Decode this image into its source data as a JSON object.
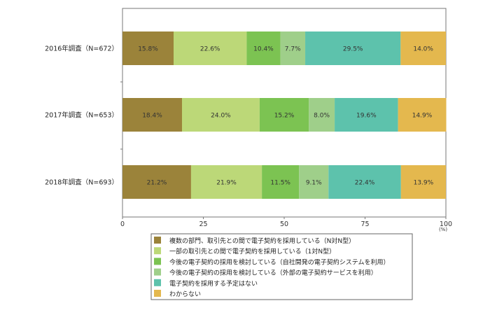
{
  "chart_data": {
    "type": "bar",
    "orientation": "horizontal",
    "stacked": true,
    "categories": [
      "2016年調査（N=672）",
      "2017年調査（N=653）",
      "2018年調査（N=693）"
    ],
    "series": [
      {
        "name": "複数の部門、取引先との間で電子契約を採用している（N対N型）",
        "color": "#9b833a",
        "values": [
          15.8,
          18.4,
          21.2
        ]
      },
      {
        "name": "一部の取引先との間で電子契約を採用している（1対N型）",
        "color": "#bcd878",
        "values": [
          22.6,
          24.0,
          21.9
        ]
      },
      {
        "name": "今後の電子契約の採用を検討している（自社開発の電子契約システムを利用）",
        "color": "#7cc352",
        "values": [
          10.4,
          15.2,
          11.5
        ]
      },
      {
        "name": "今後の電子契約の採用を検討している（外部の電子契約サービスを利用）",
        "color": "#9fcf8a",
        "values": [
          7.7,
          8.0,
          9.1
        ]
      },
      {
        "name": "電子契約を採用する予定はない",
        "color": "#5dc2ac",
        "values": [
          29.5,
          19.6,
          22.4
        ]
      },
      {
        "name": "わからない",
        "color": "#e4b84e",
        "values": [
          14.0,
          14.9,
          13.9
        ]
      }
    ],
    "xlim": [
      0,
      100
    ],
    "xticks": [
      0,
      25,
      50,
      75,
      100
    ],
    "xunit": "(%)",
    "legend_position": "bottom"
  }
}
